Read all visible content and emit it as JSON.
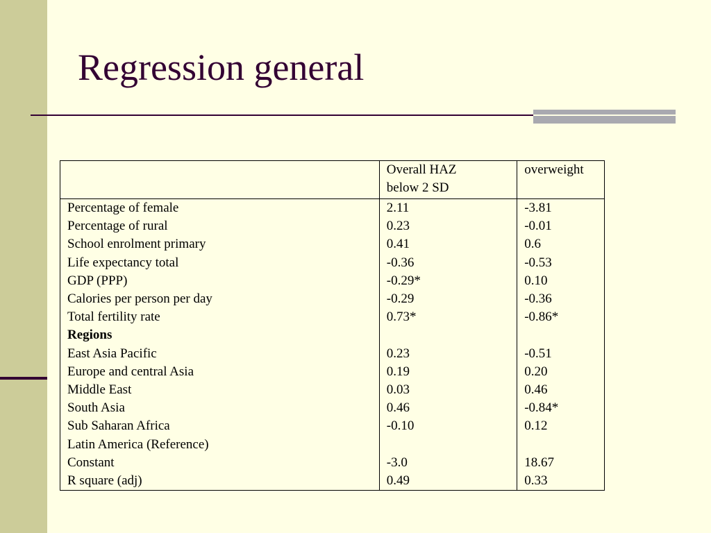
{
  "slide": {
    "title": "Regression general"
  },
  "table": {
    "header": {
      "variable": "",
      "col1_line1": "Overall HAZ",
      "col1_line2": "below 2 SD",
      "col2": "overweight"
    },
    "rows": [
      {
        "label": "Percentage of female",
        "haz": "2.11",
        "overweight": "-3.81"
      },
      {
        "label": "Percentage of rural",
        "haz": "0.23",
        "overweight": "-0.01"
      },
      {
        "label": "School enrolment primary",
        "haz": "0.41",
        "overweight": "0.6"
      },
      {
        "label": "Life expectancy total",
        "haz": "-0.36",
        "overweight": "-0.53"
      },
      {
        "label": "GDP (PPP)",
        "haz": "-0.29*",
        "overweight": "0.10"
      },
      {
        "label": "Calories per person per day",
        "haz": "-0.29",
        "overweight": "-0.36"
      },
      {
        "label": "Total fertility rate",
        "haz": "0.73*",
        "overweight": "-0.86*"
      },
      {
        "label": "Regions",
        "haz": "",
        "overweight": ""
      },
      {
        "label": "East Asia Pacific",
        "haz": "0.23",
        "overweight": "-0.51"
      },
      {
        "label": "Europe and central Asia",
        "haz": "0.19",
        "overweight": "0.20"
      },
      {
        "label": "Middle East",
        "haz": "0.03",
        "overweight": "0.46"
      },
      {
        "label": "South Asia",
        "haz": "0.46",
        "overweight": "-0.84*"
      },
      {
        "label": "Sub Saharan Africa",
        "haz": "-0.10",
        "overweight": "0.12"
      },
      {
        "label": "Latin America (Reference)",
        "haz": "",
        "overweight": ""
      },
      {
        "label": "Constant",
        "haz": "-3.0",
        "overweight": "18.67"
      },
      {
        "label": "R square (adj)",
        "haz": "0.49",
        "overweight": "0.33"
      }
    ]
  },
  "colors": {
    "background": "#ffffe5",
    "side_band": "#cccc99",
    "title": "#330033",
    "rule": "#330033",
    "rule_accent": "#a9a9b0"
  }
}
